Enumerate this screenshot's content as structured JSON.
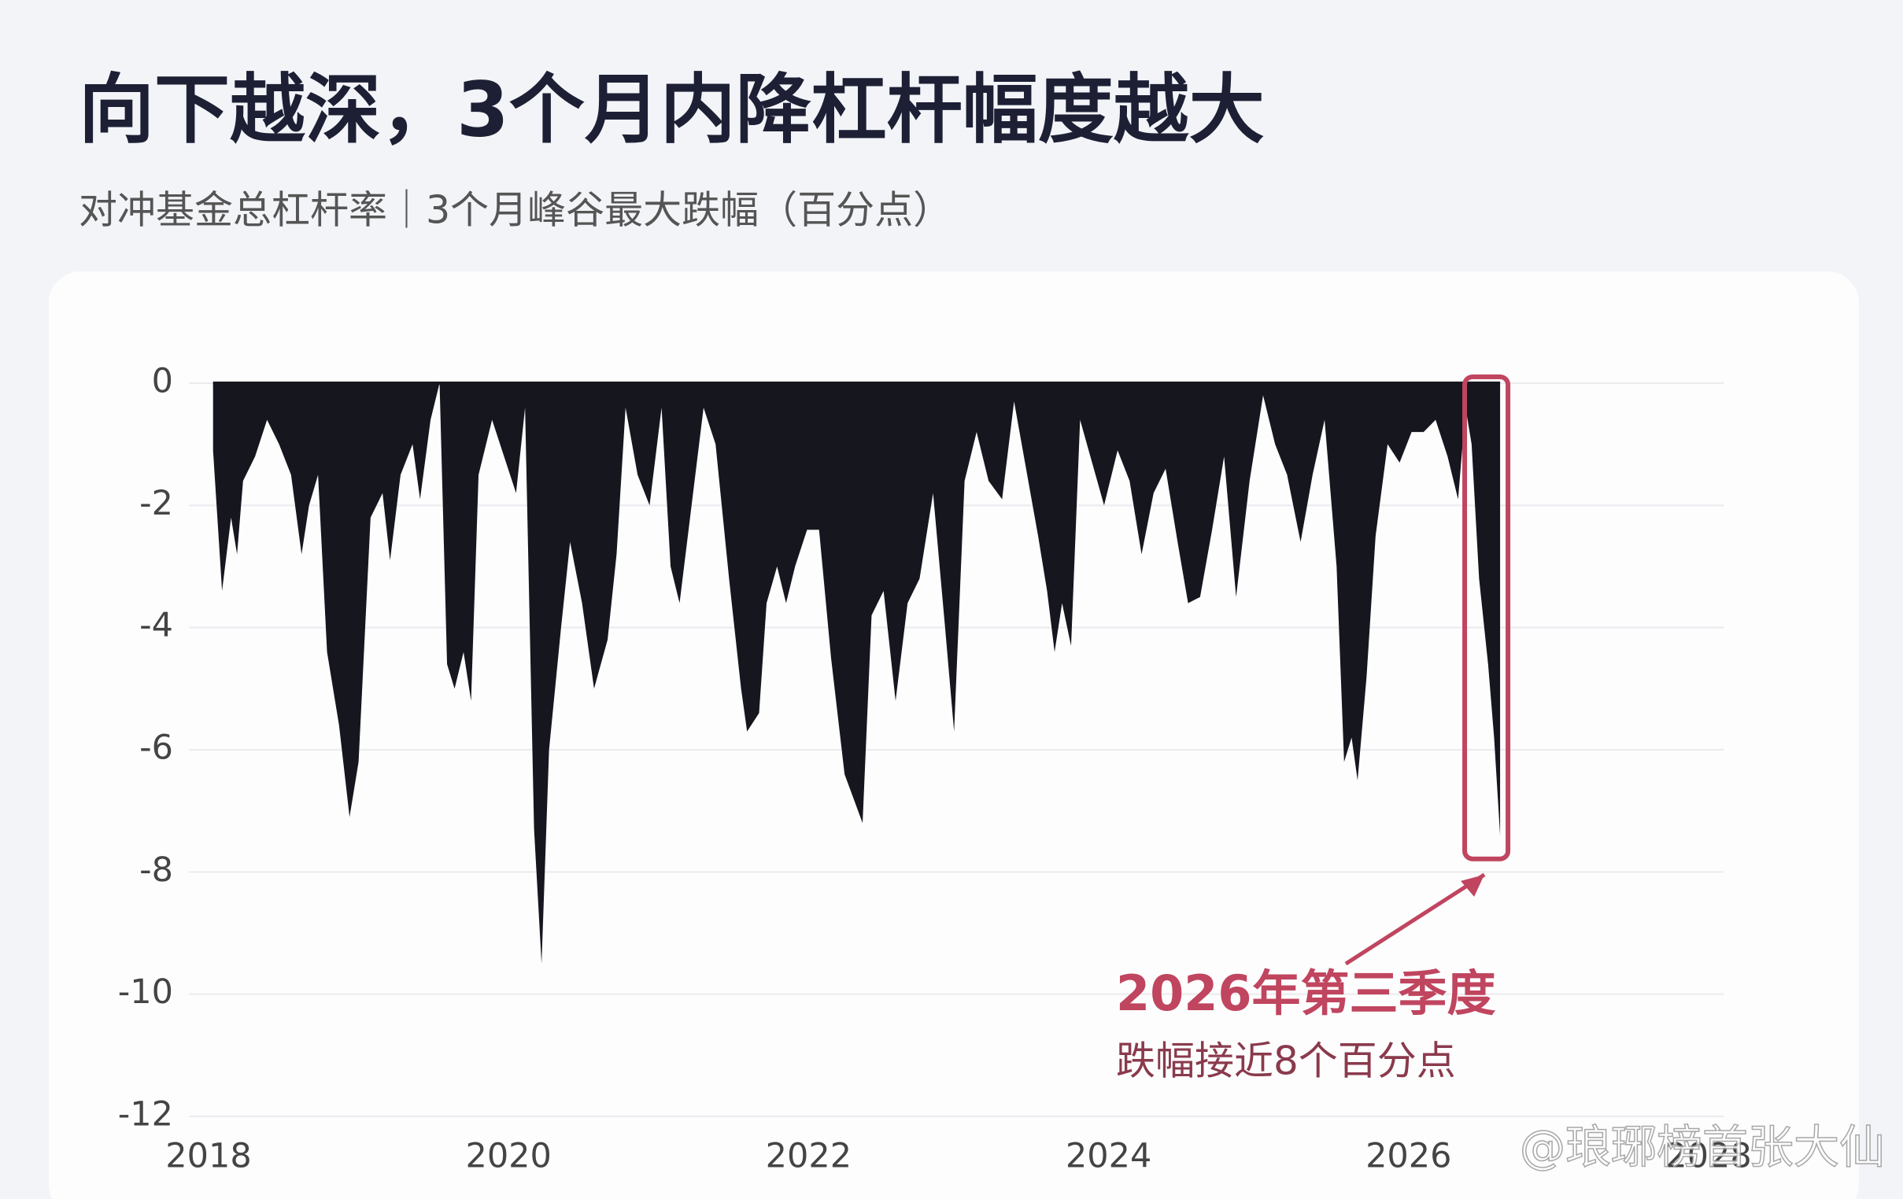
{
  "chart_data": {
    "type": "area",
    "title": "向下越深，3个月内降杠杆幅度越大",
    "subtitle": "对冲基金总杠杆率｜3个月峰谷最大跌幅（百分点）",
    "color": "#16161f",
    "x": [
      2018.03,
      2018.09,
      2018.15,
      2018.19,
      2018.23,
      2018.31,
      2018.39,
      2018.47,
      2018.55,
      2018.62,
      2018.67,
      2018.73,
      2018.79,
      2018.87,
      2018.94,
      2019.0,
      2019.08,
      2019.16,
      2019.21,
      2019.28,
      2019.36,
      2019.41,
      2019.48,
      2019.54,
      2019.59,
      2019.64,
      2019.7,
      2019.75,
      2019.8,
      2019.89,
      2019.97,
      2020.05,
      2020.11,
      2020.17,
      2020.22,
      2020.27,
      2020.35,
      2020.41,
      2020.49,
      2020.57,
      2020.66,
      2020.72,
      2020.78,
      2020.86,
      2020.94,
      2021.02,
      2021.08,
      2021.14,
      2021.22,
      2021.3,
      2021.38,
      2021.47,
      2021.55,
      2021.59,
      2021.67,
      2021.72,
      2021.79,
      2021.85,
      2021.91,
      2021.99,
      2022.07,
      2022.15,
      2022.24,
      2022.3,
      2022.36,
      2022.42,
      2022.5,
      2022.58,
      2022.66,
      2022.74,
      2022.83,
      2022.91,
      2022.97,
      2023.04,
      2023.12,
      2023.2,
      2023.29,
      2023.37,
      2023.45,
      2023.53,
      2023.59,
      2023.64,
      2023.69,
      2023.75,
      2023.81,
      2023.89,
      2023.97,
      2024.06,
      2024.14,
      2024.22,
      2024.3,
      2024.38,
      2024.46,
      2024.53,
      2024.61,
      2024.69,
      2024.77,
      2024.85,
      2024.94,
      2025.03,
      2025.11,
      2025.19,
      2025.28,
      2025.36,
      2025.44,
      2025.52,
      2025.57,
      2025.62,
      2025.66,
      2025.72,
      2025.78,
      2025.86,
      2025.94,
      2026.02,
      2026.1,
      2026.18,
      2026.26,
      2026.33,
      2026.38,
      2026.42,
      2026.47,
      2026.53,
      2026.57,
      2026.61
    ],
    "values": [
      -1.1,
      -3.4,
      -2.2,
      -2.8,
      -1.6,
      -1.2,
      -0.6,
      -1.0,
      -1.5,
      -2.8,
      -2.0,
      -1.5,
      -4.4,
      -5.6,
      -7.1,
      -6.2,
      -2.2,
      -1.8,
      -2.9,
      -1.5,
      -1.0,
      -1.9,
      -0.6,
      0,
      -4.6,
      -5.0,
      -4.4,
      -5.2,
      -1.5,
      -0.6,
      -1.2,
      -1.8,
      -0.4,
      -7.3,
      -9.5,
      -6.0,
      -4.0,
      -2.6,
      -3.6,
      -5.0,
      -4.2,
      -2.8,
      -0.4,
      -1.5,
      -2.0,
      -0.4,
      -3.0,
      -3.6,
      -2.0,
      -0.4,
      -1.0,
      -3.2,
      -5.0,
      -5.7,
      -5.4,
      -3.6,
      -3.0,
      -3.6,
      -3.0,
      -2.4,
      -2.4,
      -4.5,
      -6.4,
      -6.8,
      -7.2,
      -3.8,
      -3.4,
      -5.2,
      -3.6,
      -3.2,
      -1.8,
      -4.0,
      -5.7,
      -1.6,
      -0.8,
      -1.6,
      -1.9,
      -0.3,
      -1.4,
      -2.5,
      -3.4,
      -4.4,
      -3.6,
      -4.3,
      -0.6,
      -1.3,
      -2.0,
      -1.1,
      -1.6,
      -2.8,
      -1.8,
      -1.4,
      -2.6,
      -3.6,
      -3.5,
      -2.4,
      -1.2,
      -3.5,
      -1.6,
      -0.2,
      -1.0,
      -1.5,
      -2.6,
      -1.5,
      -0.6,
      -3.0,
      -6.2,
      -5.8,
      -6.5,
      -4.8,
      -2.5,
      -1.0,
      -1.3,
      -0.8,
      -0.8,
      -0.6,
      -1.2,
      -1.9,
      -0.4,
      -1.0,
      -3.2,
      -4.6,
      -5.8,
      -7.4
    ],
    "xlim": [
      2018,
      2028
    ],
    "xticks": [
      2018,
      2020,
      2022,
      2024,
      2026,
      2028
    ],
    "ylim": [
      -12,
      0
    ],
    "yticks": [
      0,
      -2,
      -4,
      -6,
      -8,
      -10,
      -12
    ],
    "grid": true,
    "annotation": {
      "title": "2026年第三季度",
      "text": "跌幅接近8个百分点",
      "color": "#c0455f"
    },
    "watermark": "@琅琊榜首张大仙"
  }
}
